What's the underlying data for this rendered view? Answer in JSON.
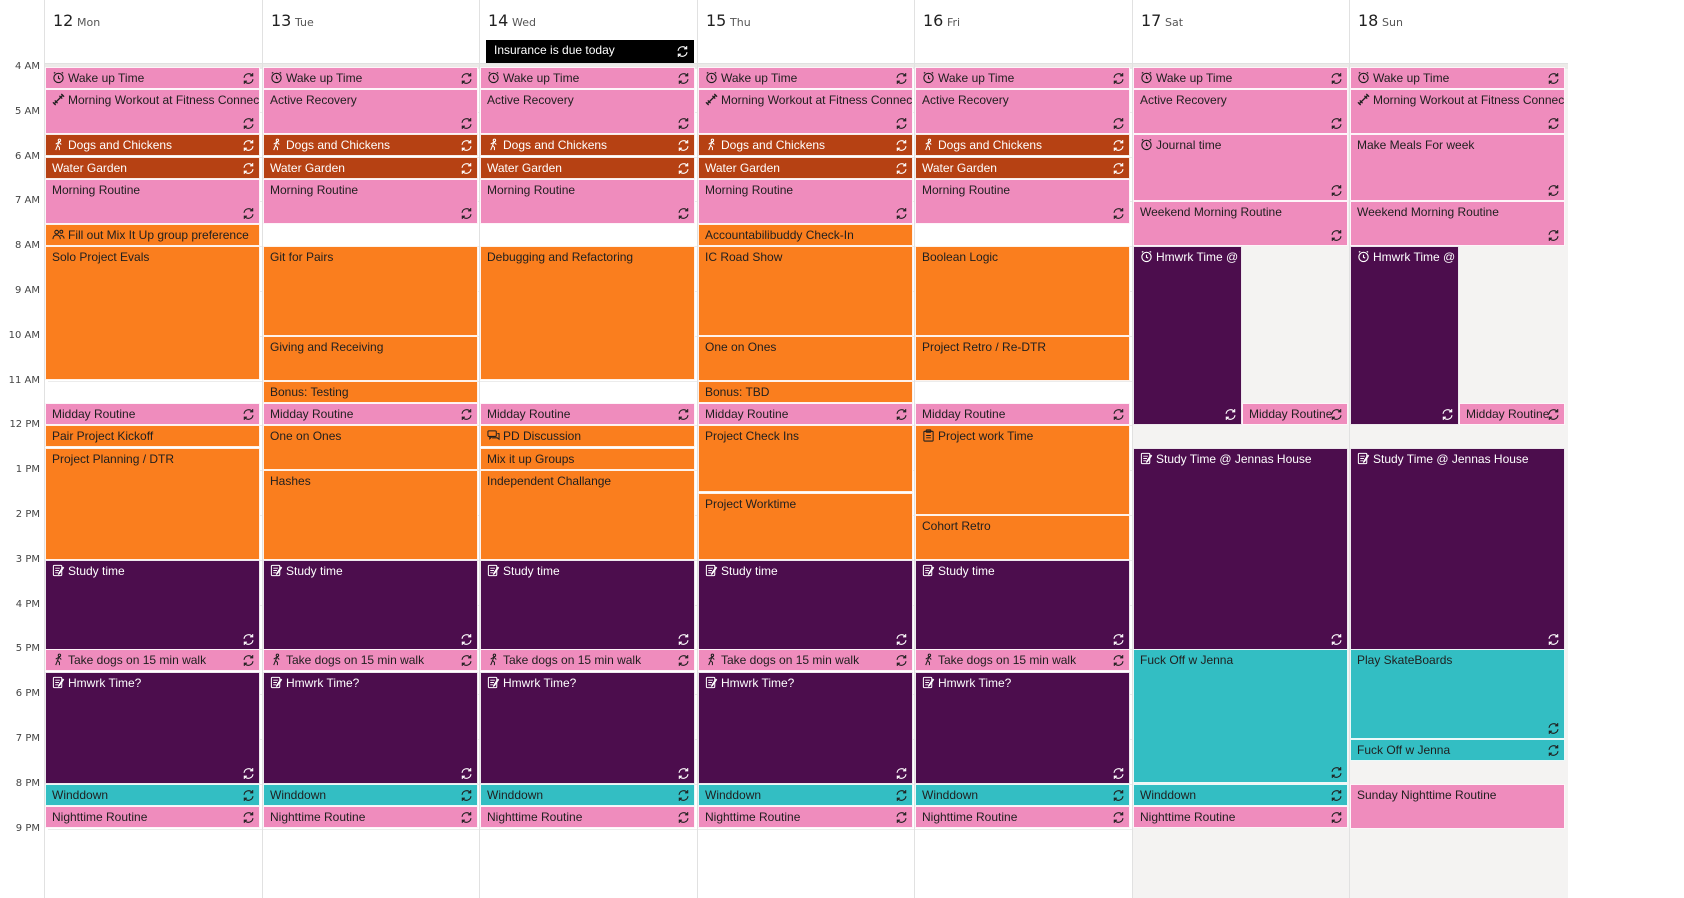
{
  "colors": {
    "pink": "#ef8cbd",
    "orange": "#fa7e1e",
    "rust": "#b64113",
    "purple": "#4c0d4d",
    "teal": "#33bec3"
  },
  "hours": [
    "4 AM",
    "5 AM",
    "6 AM",
    "7 AM",
    "8 AM",
    "9 AM",
    "10 AM",
    "11 AM",
    "12 PM",
    "1 PM",
    "2 PM",
    "3 PM",
    "4 PM",
    "5 PM",
    "6 PM",
    "7 PM",
    "8 PM",
    "9 PM"
  ],
  "days": [
    {
      "num": "12",
      "name": "Mon"
    },
    {
      "num": "13",
      "name": "Tue"
    },
    {
      "num": "14",
      "name": "Wed"
    },
    {
      "num": "15",
      "name": "Thu"
    },
    {
      "num": "16",
      "name": "Fri"
    },
    {
      "num": "17",
      "name": "Sat"
    },
    {
      "num": "18",
      "name": "Sun"
    }
  ],
  "all_day": [
    {
      "day": 2,
      "title": "Insurance is due today",
      "icon": "recurring-icon"
    }
  ],
  "events": [
    {
      "day": 0,
      "start": 4.0,
      "end": 4.5,
      "title": "Wake up Time",
      "color": "pink",
      "icon": "alarm-icon",
      "recurring": true
    },
    {
      "day": 0,
      "start": 4.5,
      "end": 5.5,
      "title": "Morning Workout at Fitness Connectio",
      "color": "pink",
      "icon": "workout-icon",
      "recurring": true
    },
    {
      "day": 0,
      "start": 5.5,
      "end": 6.0,
      "title": "Dogs and Chickens",
      "color": "rust",
      "icon": "walk-icon",
      "recurring": true
    },
    {
      "day": 0,
      "start": 6.0,
      "end": 6.5,
      "title": "Water Garden",
      "color": "rust",
      "recurring": true
    },
    {
      "day": 0,
      "start": 6.5,
      "end": 7.5,
      "title": "Morning Routine",
      "color": "pink",
      "recurring": true
    },
    {
      "day": 0,
      "start": 7.5,
      "end": 8.0,
      "title": "Fill out Mix It Up group preference",
      "color": "orange",
      "icon": "group-icon"
    },
    {
      "day": 0,
      "start": 8.0,
      "end": 11.0,
      "title": "Solo Project Evals",
      "color": "orange"
    },
    {
      "day": 0,
      "start": 11.5,
      "end": 12.0,
      "title": "Midday Routine",
      "color": "pink",
      "recurring": true
    },
    {
      "day": 0,
      "start": 12.0,
      "end": 12.5,
      "title": "Pair Project Kickoff",
      "color": "orange"
    },
    {
      "day": 0,
      "start": 12.5,
      "end": 15.0,
      "title": "Project Planning / DTR",
      "color": "orange"
    },
    {
      "day": 0,
      "start": 15.0,
      "end": 17.0,
      "title": "Study time",
      "color": "purple",
      "icon": "notes-icon",
      "recurring": true
    },
    {
      "day": 0,
      "start": 17.0,
      "end": 17.5,
      "title": "Take dogs on 15 min walk",
      "color": "pink",
      "icon": "walk-icon",
      "recurring": true
    },
    {
      "day": 0,
      "start": 17.5,
      "end": 20.0,
      "title": "Hmwrk Time?",
      "color": "purple",
      "icon": "notes-icon",
      "recurring": true
    },
    {
      "day": 0,
      "start": 20.0,
      "end": 20.5,
      "title": "Winddown",
      "color": "teal",
      "recurring": true
    },
    {
      "day": 0,
      "start": 20.5,
      "end": 21.0,
      "title": "Nighttime Routine",
      "color": "pink",
      "recurring": true
    },
    {
      "day": 1,
      "start": 4.0,
      "end": 4.5,
      "title": "Wake up Time",
      "color": "pink",
      "icon": "alarm-icon",
      "recurring": true
    },
    {
      "day": 1,
      "start": 4.5,
      "end": 5.5,
      "title": "Active Recovery",
      "color": "pink",
      "recurring": true
    },
    {
      "day": 1,
      "start": 5.5,
      "end": 6.0,
      "title": "Dogs and Chickens",
      "color": "rust",
      "icon": "walk-icon",
      "recurring": true
    },
    {
      "day": 1,
      "start": 6.0,
      "end": 6.5,
      "title": "Water Garden",
      "color": "rust",
      "recurring": true
    },
    {
      "day": 1,
      "start": 6.5,
      "end": 7.5,
      "title": "Morning Routine",
      "color": "pink",
      "recurring": true
    },
    {
      "day": 1,
      "start": 8.0,
      "end": 10.0,
      "title": "Git for Pairs",
      "color": "orange"
    },
    {
      "day": 1,
      "start": 10.0,
      "end": 11.0,
      "title": "Giving and Receiving",
      "color": "orange"
    },
    {
      "day": 1,
      "start": 11.0,
      "end": 11.5,
      "title": "Bonus: Testing",
      "color": "orange"
    },
    {
      "day": 1,
      "start": 11.5,
      "end": 12.0,
      "title": "Midday Routine",
      "color": "pink",
      "recurring": true
    },
    {
      "day": 1,
      "start": 12.0,
      "end": 13.0,
      "title": "One on Ones",
      "color": "orange"
    },
    {
      "day": 1,
      "start": 13.0,
      "end": 15.0,
      "title": "Hashes",
      "color": "orange"
    },
    {
      "day": 1,
      "start": 15.0,
      "end": 17.0,
      "title": "Study time",
      "color": "purple",
      "icon": "notes-icon",
      "recurring": true
    },
    {
      "day": 1,
      "start": 17.0,
      "end": 17.5,
      "title": "Take dogs on 15 min walk",
      "color": "pink",
      "icon": "walk-icon",
      "recurring": true
    },
    {
      "day": 1,
      "start": 17.5,
      "end": 20.0,
      "title": "Hmwrk Time?",
      "color": "purple",
      "icon": "notes-icon",
      "recurring": true
    },
    {
      "day": 1,
      "start": 20.0,
      "end": 20.5,
      "title": "Winddown",
      "color": "teal",
      "recurring": true
    },
    {
      "day": 1,
      "start": 20.5,
      "end": 21.0,
      "title": "Nighttime Routine",
      "color": "pink",
      "recurring": true
    },
    {
      "day": 2,
      "start": 4.0,
      "end": 4.5,
      "title": "Wake up Time",
      "color": "pink",
      "icon": "alarm-icon",
      "recurring": true
    },
    {
      "day": 2,
      "start": 4.5,
      "end": 5.5,
      "title": "Active Recovery",
      "color": "pink",
      "recurring": true
    },
    {
      "day": 2,
      "start": 5.5,
      "end": 6.0,
      "title": "Dogs and Chickens",
      "color": "rust",
      "icon": "walk-icon",
      "recurring": true
    },
    {
      "day": 2,
      "start": 6.0,
      "end": 6.5,
      "title": "Water Garden",
      "color": "rust",
      "recurring": true
    },
    {
      "day": 2,
      "start": 6.5,
      "end": 7.5,
      "title": "Morning Routine",
      "color": "pink",
      "recurring": true
    },
    {
      "day": 2,
      "start": 8.0,
      "end": 11.0,
      "title": "Debugging and Refactoring",
      "color": "orange"
    },
    {
      "day": 2,
      "start": 11.5,
      "end": 12.0,
      "title": "Midday Routine",
      "color": "pink",
      "recurring": true
    },
    {
      "day": 2,
      "start": 12.0,
      "end": 12.5,
      "title": "PD Discussion",
      "color": "orange",
      "icon": "chat-icon"
    },
    {
      "day": 2,
      "start": 12.5,
      "end": 13.0,
      "title": "Mix it up Groups",
      "color": "orange"
    },
    {
      "day": 2,
      "start": 13.0,
      "end": 15.0,
      "title": "Independent Challange",
      "color": "orange"
    },
    {
      "day": 2,
      "start": 15.0,
      "end": 17.0,
      "title": "Study time",
      "color": "purple",
      "icon": "notes-icon",
      "recurring": true
    },
    {
      "day": 2,
      "start": 17.0,
      "end": 17.5,
      "title": "Take dogs on 15 min walk",
      "color": "pink",
      "icon": "walk-icon",
      "recurring": true
    },
    {
      "day": 2,
      "start": 17.5,
      "end": 20.0,
      "title": "Hmwrk Time?",
      "color": "purple",
      "icon": "notes-icon",
      "recurring": true
    },
    {
      "day": 2,
      "start": 20.0,
      "end": 20.5,
      "title": "Winddown",
      "color": "teal",
      "recurring": true
    },
    {
      "day": 2,
      "start": 20.5,
      "end": 21.0,
      "title": "Nighttime Routine",
      "color": "pink",
      "recurring": true
    },
    {
      "day": 3,
      "start": 4.0,
      "end": 4.5,
      "title": "Wake up Time",
      "color": "pink",
      "icon": "alarm-icon",
      "recurring": true
    },
    {
      "day": 3,
      "start": 4.5,
      "end": 5.5,
      "title": "Morning Workout at Fitness Connectio",
      "color": "pink",
      "icon": "workout-icon",
      "recurring": true
    },
    {
      "day": 3,
      "start": 5.5,
      "end": 6.0,
      "title": "Dogs and Chickens",
      "color": "rust",
      "icon": "walk-icon",
      "recurring": true
    },
    {
      "day": 3,
      "start": 6.0,
      "end": 6.5,
      "title": "Water Garden",
      "color": "rust",
      "recurring": true
    },
    {
      "day": 3,
      "start": 6.5,
      "end": 7.5,
      "title": "Morning Routine",
      "color": "pink",
      "recurring": true
    },
    {
      "day": 3,
      "start": 7.5,
      "end": 8.0,
      "title": "Accountabilibuddy Check-In",
      "color": "orange"
    },
    {
      "day": 3,
      "start": 8.0,
      "end": 10.0,
      "title": "IC Road Show",
      "color": "orange"
    },
    {
      "day": 3,
      "start": 10.0,
      "end": 11.0,
      "title": "One on Ones",
      "color": "orange"
    },
    {
      "day": 3,
      "start": 11.0,
      "end": 11.5,
      "title": "Bonus: TBD",
      "color": "orange"
    },
    {
      "day": 3,
      "start": 11.5,
      "end": 12.0,
      "title": "Midday Routine",
      "color": "pink",
      "recurring": true
    },
    {
      "day": 3,
      "start": 12.0,
      "end": 13.5,
      "title": "Project Check Ins",
      "color": "orange"
    },
    {
      "day": 3,
      "start": 13.5,
      "end": 15.0,
      "title": "Project Worktime",
      "color": "orange"
    },
    {
      "day": 3,
      "start": 15.0,
      "end": 17.0,
      "title": "Study time",
      "color": "purple",
      "icon": "notes-icon",
      "recurring": true
    },
    {
      "day": 3,
      "start": 17.0,
      "end": 17.5,
      "title": "Take dogs on 15 min walk",
      "color": "pink",
      "icon": "walk-icon",
      "recurring": true
    },
    {
      "day": 3,
      "start": 17.5,
      "end": 20.0,
      "title": "Hmwrk Time?",
      "color": "purple",
      "icon": "notes-icon",
      "recurring": true
    },
    {
      "day": 3,
      "start": 20.0,
      "end": 20.5,
      "title": "Winddown",
      "color": "teal",
      "recurring": true
    },
    {
      "day": 3,
      "start": 20.5,
      "end": 21.0,
      "title": "Nighttime Routine",
      "color": "pink",
      "recurring": true
    },
    {
      "day": 4,
      "start": 4.0,
      "end": 4.5,
      "title": "Wake up Time",
      "color": "pink",
      "icon": "alarm-icon",
      "recurring": true
    },
    {
      "day": 4,
      "start": 4.5,
      "end": 5.5,
      "title": "Active Recovery",
      "color": "pink",
      "recurring": true
    },
    {
      "day": 4,
      "start": 5.5,
      "end": 6.0,
      "title": "Dogs and Chickens",
      "color": "rust",
      "icon": "walk-icon",
      "recurring": true
    },
    {
      "day": 4,
      "start": 6.0,
      "end": 6.5,
      "title": "Water Garden",
      "color": "rust",
      "recurring": true
    },
    {
      "day": 4,
      "start": 6.5,
      "end": 7.5,
      "title": "Morning Routine",
      "color": "pink",
      "recurring": true
    },
    {
      "day": 4,
      "start": 8.0,
      "end": 10.0,
      "title": "Boolean Logic",
      "color": "orange"
    },
    {
      "day": 4,
      "start": 10.0,
      "end": 11.0,
      "title": "Project Retro / Re-DTR",
      "color": "orange"
    },
    {
      "day": 4,
      "start": 11.5,
      "end": 12.0,
      "title": "Midday Routine",
      "color": "pink",
      "recurring": true
    },
    {
      "day": 4,
      "start": 12.0,
      "end": 14.0,
      "title": "Project work Time",
      "color": "orange",
      "icon": "clipboard-icon"
    },
    {
      "day": 4,
      "start": 14.0,
      "end": 15.0,
      "title": "Cohort Retro",
      "color": "orange"
    },
    {
      "day": 4,
      "start": 15.0,
      "end": 17.0,
      "title": "Study time",
      "color": "purple",
      "icon": "notes-icon",
      "recurring": true
    },
    {
      "day": 4,
      "start": 17.0,
      "end": 17.5,
      "title": "Take dogs on 15 min walk",
      "color": "pink",
      "icon": "walk-icon",
      "recurring": true
    },
    {
      "day": 4,
      "start": 17.5,
      "end": 20.0,
      "title": "Hmwrk Time?",
      "color": "purple",
      "icon": "notes-icon",
      "recurring": true
    },
    {
      "day": 4,
      "start": 20.0,
      "end": 20.5,
      "title": "Winddown",
      "color": "teal",
      "recurring": true
    },
    {
      "day": 4,
      "start": 20.5,
      "end": 21.0,
      "title": "Nighttime Routine",
      "color": "pink",
      "recurring": true
    },
    {
      "day": 5,
      "start": 4.0,
      "end": 4.5,
      "title": "Wake up Time",
      "color": "pink",
      "icon": "alarm-icon",
      "recurring": true
    },
    {
      "day": 5,
      "start": 4.5,
      "end": 5.5,
      "title": "Active Recovery",
      "color": "pink",
      "recurring": true
    },
    {
      "day": 5,
      "start": 5.5,
      "end": 7.0,
      "title": "Journal time",
      "color": "pink",
      "icon": "alarm-icon",
      "recurring": true
    },
    {
      "day": 5,
      "start": 7.0,
      "end": 8.0,
      "title": "Weekend Morning Routine",
      "color": "pink",
      "recurring": true
    },
    {
      "day": 5,
      "start": 8.0,
      "end": 12.0,
      "title": "Hmwrk Time @",
      "color": "purple",
      "icon": "alarm-icon",
      "recurring": true,
      "half": "left"
    },
    {
      "day": 5,
      "start": 11.5,
      "end": 12.0,
      "title": "Midday Routine",
      "color": "pink",
      "recurring": true,
      "half": "right"
    },
    {
      "day": 5,
      "start": 12.5,
      "end": 17.0,
      "title": "Study Time @ Jennas House",
      "color": "purple",
      "icon": "notes-icon",
      "recurring": true
    },
    {
      "day": 5,
      "start": 17.0,
      "end": 20.0,
      "title": "Fuck Off w Jenna",
      "color": "teal",
      "recurring": true
    },
    {
      "day": 5,
      "start": 20.0,
      "end": 20.5,
      "title": "Winddown",
      "color": "teal",
      "recurring": true
    },
    {
      "day": 5,
      "start": 20.5,
      "end": 21.0,
      "title": "Nighttime Routine",
      "color": "pink",
      "recurring": true
    },
    {
      "day": 6,
      "start": 4.0,
      "end": 4.5,
      "title": "Wake up Time",
      "color": "pink",
      "icon": "alarm-icon",
      "recurring": true
    },
    {
      "day": 6,
      "start": 4.5,
      "end": 5.5,
      "title": "Morning Workout at Fitness Connectio",
      "color": "pink",
      "icon": "workout-icon",
      "recurring": true
    },
    {
      "day": 6,
      "start": 5.5,
      "end": 7.0,
      "title": "Make Meals For week",
      "color": "pink",
      "recurring": true
    },
    {
      "day": 6,
      "start": 7.0,
      "end": 8.0,
      "title": "Weekend Morning Routine",
      "color": "pink",
      "recurring": true
    },
    {
      "day": 6,
      "start": 8.0,
      "end": 12.0,
      "title": "Hmwrk Time @",
      "color": "purple",
      "icon": "alarm-icon",
      "recurring": true,
      "half": "left"
    },
    {
      "day": 6,
      "start": 11.5,
      "end": 12.0,
      "title": "Midday Routine",
      "color": "pink",
      "recurring": true,
      "half": "right"
    },
    {
      "day": 6,
      "start": 12.5,
      "end": 17.0,
      "title": "Study Time @ Jennas House",
      "color": "purple",
      "icon": "notes-icon",
      "recurring": true
    },
    {
      "day": 6,
      "start": 17.0,
      "end": 19.0,
      "title": "Play SkateBoards",
      "color": "teal",
      "recurring": true
    },
    {
      "day": 6,
      "start": 19.0,
      "end": 19.5,
      "title": "Fuck Off w Jenna",
      "color": "teal",
      "recurring": true
    },
    {
      "day": 6,
      "start": 20.0,
      "end": 21.0,
      "title": "Sunday Nighttime Routine",
      "color": "pink"
    }
  ]
}
